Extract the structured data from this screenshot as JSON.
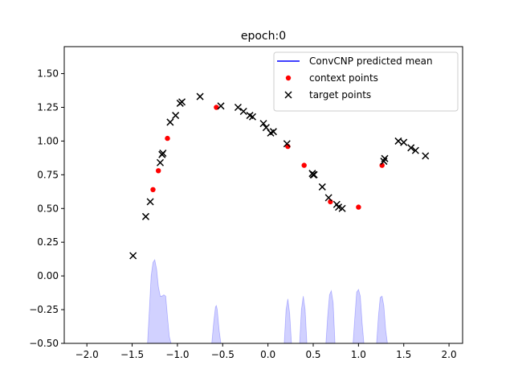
{
  "chart_data": {
    "type": "scatter",
    "title": "epoch:0",
    "xlabel": "",
    "ylabel": "",
    "xlim": [
      -2.25,
      2.15
    ],
    "ylim": [
      -0.5,
      1.7
    ],
    "xticks": [
      -2.0,
      -1.5,
      -1.0,
      -0.5,
      0.0,
      0.5,
      1.0,
      1.5,
      2.0
    ],
    "xtick_labels": [
      "−2.0",
      "−1.5",
      "−1.0",
      "−0.5",
      "0.0",
      "0.5",
      "1.0",
      "1.5",
      "2.0"
    ],
    "yticks": [
      -0.5,
      -0.25,
      0.0,
      0.25,
      0.5,
      0.75,
      1.0,
      1.25,
      1.5
    ],
    "ytick_labels": [
      "−0.50",
      "−0.25",
      "0.00",
      "0.25",
      "0.50",
      "0.75",
      "1.00",
      "1.25",
      "1.50"
    ],
    "grid": false,
    "legend_position": "top-right",
    "series": [
      {
        "name": "ConvCNP predicted mean",
        "kind": "line",
        "color": "#0000ff",
        "x": [],
        "y": []
      },
      {
        "name": "context points",
        "kind": "scatter",
        "marker": "dot",
        "color": "#ff0000",
        "x": [
          -1.27,
          -1.21,
          -1.11,
          -0.57,
          0.22,
          0.4,
          0.69,
          1.0,
          1.26
        ],
        "y": [
          0.64,
          0.78,
          1.02,
          1.25,
          0.96,
          0.82,
          0.55,
          0.51,
          0.82
        ]
      },
      {
        "name": "target points",
        "kind": "scatter",
        "marker": "x",
        "color": "#000000",
        "x": [
          -1.49,
          -1.35,
          -1.3,
          -1.19,
          -1.17,
          -1.16,
          -1.08,
          -1.02,
          -0.97,
          -0.95,
          -0.75,
          -0.52,
          -0.33,
          -0.27,
          -0.2,
          -0.17,
          -0.05,
          -0.02,
          0.03,
          0.06,
          0.21,
          0.49,
          0.5,
          0.51,
          0.6,
          0.67,
          0.76,
          0.78,
          0.82,
          1.28,
          1.29,
          1.44,
          1.5,
          1.58,
          1.63,
          1.74
        ],
        "y": [
          0.15,
          0.44,
          0.55,
          0.84,
          0.9,
          0.91,
          1.14,
          1.19,
          1.28,
          1.29,
          1.33,
          1.26,
          1.25,
          1.22,
          1.19,
          1.18,
          1.13,
          1.1,
          1.06,
          1.07,
          0.98,
          0.76,
          0.75,
          0.75,
          0.66,
          0.58,
          0.53,
          0.51,
          0.5,
          0.85,
          0.87,
          1.0,
          0.99,
          0.95,
          0.93,
          0.89
        ]
      },
      {
        "name": "",
        "kind": "area",
        "color": "#0000ff",
        "opacity": 0.18,
        "baseline": -0.5,
        "x": [
          -1.33,
          -1.31,
          -1.29,
          -1.27,
          -1.25,
          -1.23,
          -1.21,
          -1.19,
          -1.17,
          -1.15,
          -1.13,
          -1.11,
          -1.09,
          -1.07,
          -0.62,
          -0.6,
          -0.58,
          -0.57,
          -0.56,
          -0.54,
          -0.52,
          0.18,
          0.2,
          0.22,
          0.24,
          0.26,
          0.35,
          0.37,
          0.39,
          0.41,
          0.43,
          0.64,
          0.66,
          0.68,
          0.7,
          0.72,
          0.74,
          0.94,
          0.96,
          0.98,
          1.0,
          1.02,
          1.04,
          1.06,
          1.2,
          1.22,
          1.24,
          1.26,
          1.28,
          1.3,
          1.32
        ],
        "y": [
          -0.5,
          -0.25,
          0.0,
          0.1,
          0.12,
          0.05,
          -0.08,
          -0.15,
          -0.15,
          -0.14,
          -0.15,
          -0.3,
          -0.45,
          -0.5,
          -0.5,
          -0.35,
          -0.23,
          -0.22,
          -0.25,
          -0.4,
          -0.5,
          -0.5,
          -0.25,
          -0.17,
          -0.28,
          -0.5,
          -0.5,
          -0.25,
          -0.15,
          -0.25,
          -0.5,
          -0.5,
          -0.3,
          -0.14,
          -0.11,
          -0.2,
          -0.5,
          -0.5,
          -0.3,
          -0.12,
          -0.1,
          -0.15,
          -0.35,
          -0.5,
          -0.5,
          -0.3,
          -0.16,
          -0.15,
          -0.22,
          -0.4,
          -0.5
        ]
      }
    ]
  }
}
